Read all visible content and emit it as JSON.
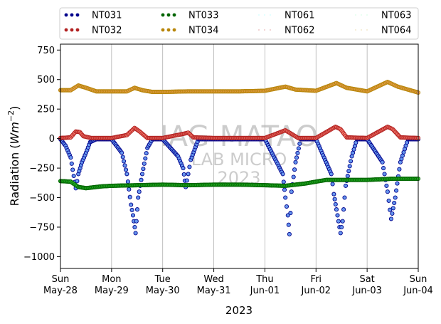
{
  "chart_data": {
    "type": "scatter",
    "title": "",
    "xlabel": "2023",
    "ylabel_prefix": "Radiation (",
    "ylabel_unit_base": "Wm",
    "ylabel_unit_exp": "−2",
    "ylabel_suffix": ")",
    "ylim": [
      -1100,
      800
    ],
    "xlim": [
      "2023-05-28",
      "2023-06-04"
    ],
    "grid": "vertical",
    "legend_placement": "top, outside plot, 4 columns",
    "yticks": [
      {
        "v": 750,
        "label": "750"
      },
      {
        "v": 500,
        "label": "500"
      },
      {
        "v": 250,
        "label": "250"
      },
      {
        "v": 0,
        "label": "0"
      },
      {
        "v": -250,
        "label": "−250"
      },
      {
        "v": -500,
        "label": "−500"
      },
      {
        "v": -750,
        "label": "−750"
      },
      {
        "v": -1000,
        "label": "−1000"
      }
    ],
    "xticks": [
      {
        "day": 0,
        "l1": "Sun",
        "l2": "May-28"
      },
      {
        "day": 1,
        "l1": "Mon",
        "l2": "May-29"
      },
      {
        "day": 2,
        "l1": "Tue",
        "l2": "May-30"
      },
      {
        "day": 3,
        "l1": "Wed",
        "l2": "May-31"
      },
      {
        "day": 4,
        "l1": "Thu",
        "l2": "Jun-01"
      },
      {
        "day": 5,
        "l1": "Fri",
        "l2": "Jun-02"
      },
      {
        "day": 6,
        "l1": "Sat",
        "l2": "Jun-03"
      },
      {
        "day": 7,
        "l1": "Sun",
        "l2": "Jun-04"
      }
    ],
    "watermark": [
      "IAG-MATAO",
      "LAB MICRO",
      "2023"
    ],
    "series": [
      {
        "name": "NT031",
        "color": "#00008b",
        "fill": "#6495ed",
        "style": "dots",
        "points": [
          [
            0.0,
            -5
          ],
          [
            0.1,
            -60
          ],
          [
            0.2,
            -160
          ],
          [
            0.3,
            -420
          ],
          [
            0.35,
            -300
          ],
          [
            0.42,
            -200
          ],
          [
            0.5,
            -120
          ],
          [
            0.58,
            -30
          ],
          [
            0.7,
            -5
          ],
          [
            1.0,
            -5
          ],
          [
            1.2,
            -120
          ],
          [
            1.3,
            -300
          ],
          [
            1.38,
            -560
          ],
          [
            1.42,
            -650
          ],
          [
            1.47,
            -800
          ],
          [
            1.52,
            -500
          ],
          [
            1.6,
            -300
          ],
          [
            1.7,
            -80
          ],
          [
            1.8,
            -5
          ],
          [
            2.0,
            -5
          ],
          [
            2.3,
            -150
          ],
          [
            2.4,
            -250
          ],
          [
            2.45,
            -410
          ],
          [
            2.5,
            -300
          ],
          [
            2.55,
            -180
          ],
          [
            2.7,
            -5
          ],
          [
            3.0,
            -5
          ],
          [
            4.0,
            -5
          ],
          [
            4.35,
            -300
          ],
          [
            4.4,
            -500
          ],
          [
            4.45,
            -650
          ],
          [
            4.48,
            -810
          ],
          [
            4.52,
            -450
          ],
          [
            4.6,
            -200
          ],
          [
            4.7,
            -5
          ],
          [
            5.0,
            -5
          ],
          [
            5.3,
            -300
          ],
          [
            5.35,
            -470
          ],
          [
            5.4,
            -600
          ],
          [
            5.48,
            -800
          ],
          [
            5.52,
            -700
          ],
          [
            5.58,
            -400
          ],
          [
            5.7,
            -150
          ],
          [
            5.8,
            -5
          ],
          [
            6.0,
            -5
          ],
          [
            6.3,
            -200
          ],
          [
            6.4,
            -450
          ],
          [
            6.47,
            -680
          ],
          [
            6.55,
            -500
          ],
          [
            6.65,
            -200
          ],
          [
            6.8,
            -5
          ],
          [
            7.0,
            -5
          ]
        ]
      },
      {
        "name": "NT032",
        "color": "#b22222",
        "fill": "#fa8072",
        "style": "dots",
        "points": [
          [
            0.0,
            5
          ],
          [
            0.2,
            10
          ],
          [
            0.3,
            60
          ],
          [
            0.38,
            55
          ],
          [
            0.45,
            20
          ],
          [
            0.6,
            5
          ],
          [
            1.0,
            5
          ],
          [
            1.3,
            30
          ],
          [
            1.45,
            90
          ],
          [
            1.55,
            60
          ],
          [
            1.7,
            5
          ],
          [
            2.0,
            5
          ],
          [
            2.4,
            40
          ],
          [
            2.5,
            50
          ],
          [
            2.6,
            10
          ],
          [
            3.0,
            5
          ],
          [
            4.0,
            5
          ],
          [
            4.4,
            70
          ],
          [
            4.5,
            45
          ],
          [
            4.65,
            5
          ],
          [
            5.0,
            5
          ],
          [
            5.38,
            100
          ],
          [
            5.48,
            80
          ],
          [
            5.6,
            10
          ],
          [
            6.0,
            5
          ],
          [
            6.4,
            100
          ],
          [
            6.5,
            80
          ],
          [
            6.65,
            10
          ],
          [
            7.0,
            5
          ]
        ]
      },
      {
        "name": "NT033",
        "color": "#006400",
        "fill": "#32cd32",
        "style": "dots",
        "points": [
          [
            0.0,
            -360
          ],
          [
            0.2,
            -365
          ],
          [
            0.35,
            -410
          ],
          [
            0.5,
            -420
          ],
          [
            0.8,
            -405
          ],
          [
            1.0,
            -400
          ],
          [
            1.5,
            -395
          ],
          [
            2.0,
            -390
          ],
          [
            2.5,
            -395
          ],
          [
            3.0,
            -390
          ],
          [
            3.5,
            -390
          ],
          [
            4.0,
            -395
          ],
          [
            4.4,
            -400
          ],
          [
            4.8,
            -380
          ],
          [
            5.2,
            -350
          ],
          [
            5.6,
            -350
          ],
          [
            6.0,
            -350
          ],
          [
            6.5,
            -340
          ],
          [
            7.0,
            -340
          ]
        ]
      },
      {
        "name": "NT034",
        "color": "#b8860b",
        "fill": "#f4a460",
        "style": "dots",
        "points": [
          [
            0.0,
            410
          ],
          [
            0.2,
            410
          ],
          [
            0.35,
            450
          ],
          [
            0.5,
            430
          ],
          [
            0.7,
            400
          ],
          [
            1.0,
            400
          ],
          [
            1.3,
            400
          ],
          [
            1.45,
            430
          ],
          [
            1.6,
            410
          ],
          [
            1.8,
            395
          ],
          [
            2.0,
            395
          ],
          [
            2.5,
            400
          ],
          [
            3.0,
            400
          ],
          [
            3.5,
            400
          ],
          [
            4.0,
            405
          ],
          [
            4.4,
            440
          ],
          [
            4.6,
            415
          ],
          [
            5.0,
            405
          ],
          [
            5.4,
            470
          ],
          [
            5.6,
            430
          ],
          [
            6.0,
            400
          ],
          [
            6.4,
            480
          ],
          [
            6.6,
            440
          ],
          [
            7.0,
            390
          ]
        ]
      },
      {
        "name": "NT061",
        "color": "#e0ffff",
        "fill": "#e0ffff",
        "style": "dotted"
      },
      {
        "name": "NT062",
        "color": "#f0d0d0",
        "fill": "#f0d0d0",
        "style": "dotted"
      },
      {
        "name": "NT063",
        "color": "#e8fff0",
        "fill": "#e8fff0",
        "style": "dotted"
      },
      {
        "name": "NT064",
        "color": "#f5ecd5",
        "fill": "#f5ecd5",
        "style": "dotted"
      }
    ]
  }
}
